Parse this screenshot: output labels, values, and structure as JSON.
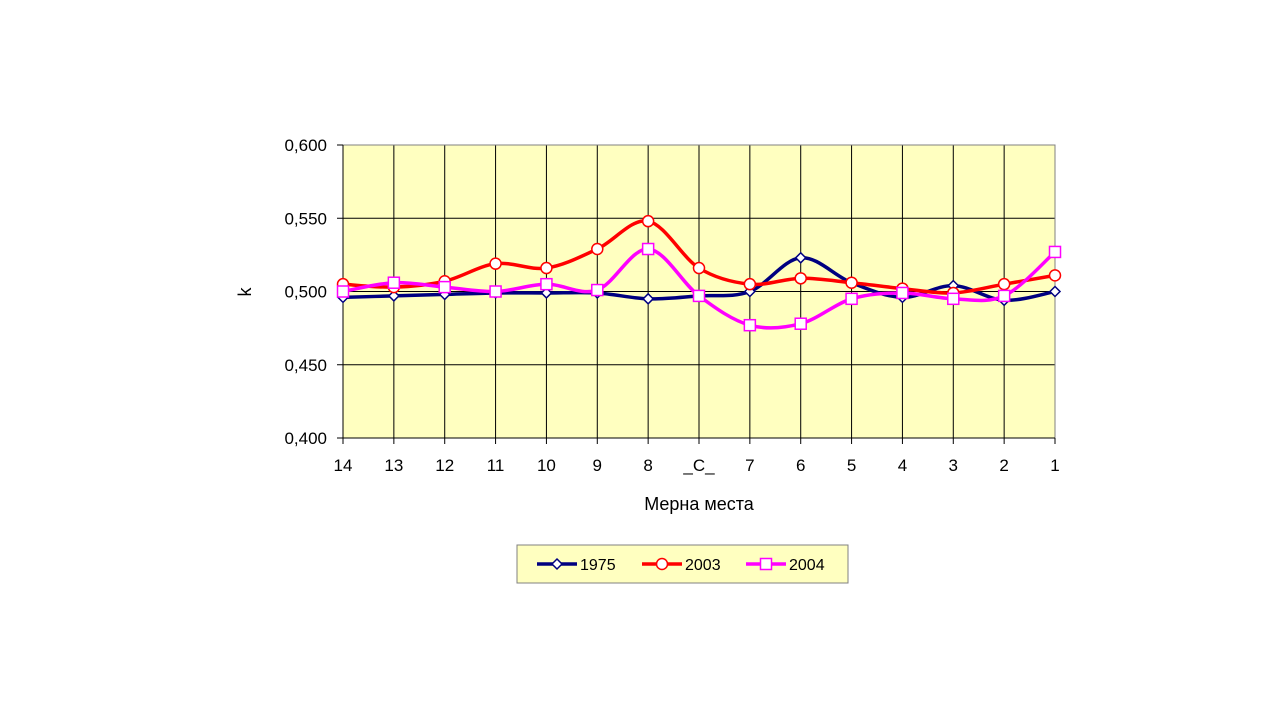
{
  "chart_data": {
    "type": "line",
    "xlabel": "Мерна места",
    "ylabel": "k",
    "categories": [
      "14",
      "13",
      "12",
      "11",
      "10",
      "9",
      "8",
      "_C_",
      "7",
      "6",
      "5",
      "4",
      "3",
      "2",
      "1"
    ],
    "ylim": [
      0.4,
      0.6
    ],
    "yticks": [
      "0,600",
      "0,550",
      "0,500",
      "0,450",
      "0,400"
    ],
    "ytick_values": [
      0.6,
      0.55,
      0.5,
      0.45,
      0.4
    ],
    "grid": true,
    "legend_position": "bottom",
    "plot_background": "#ffffc0",
    "series": [
      {
        "name": "1975",
        "color": "#000080",
        "marker": "diamond",
        "values": [
          0.496,
          0.497,
          0.498,
          0.499,
          0.499,
          0.499,
          0.495,
          0.497,
          0.5,
          0.523,
          0.506,
          0.496,
          0.504,
          0.494,
          0.5
        ]
      },
      {
        "name": "2003",
        "color": "#ff0000",
        "marker": "circle",
        "values": [
          0.505,
          0.503,
          0.507,
          0.519,
          0.516,
          0.529,
          0.548,
          0.516,
          0.505,
          0.509,
          0.506,
          0.502,
          0.499,
          0.505,
          0.511
        ]
      },
      {
        "name": "2004",
        "color": "#ff00ff",
        "marker": "square",
        "values": [
          0.5,
          0.506,
          0.503,
          0.5,
          0.505,
          0.501,
          0.529,
          0.497,
          0.477,
          0.478,
          0.495,
          0.499,
          0.495,
          0.497,
          0.527
        ]
      }
    ]
  }
}
